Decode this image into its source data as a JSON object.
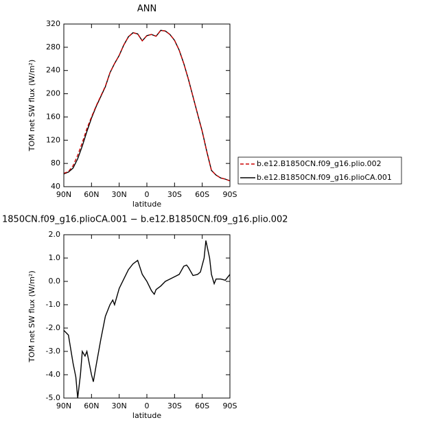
{
  "chart_data": [
    {
      "type": "line",
      "title": "ANN",
      "x": [
        90,
        85,
        80,
        75,
        70,
        65,
        60,
        55,
        50,
        45,
        40,
        35,
        30,
        25,
        20,
        15,
        10,
        5,
        0,
        -5,
        -10,
        -15,
        -20,
        -25,
        -30,
        -35,
        -40,
        -45,
        -50,
        -55,
        -60,
        -65,
        -70,
        -75,
        -80,
        -85,
        -90
      ],
      "series": [
        {
          "name": "b.e12.B1850CN.f09_g16.plio.002",
          "color": "#cc0000",
          "style": "dashed",
          "values": [
            63,
            66,
            76,
            94,
            116,
            140,
            160,
            179,
            196,
            213,
            236,
            252,
            266,
            284,
            298,
            305,
            303,
            291,
            300,
            302,
            299,
            309,
            308,
            302,
            292,
            275,
            252,
            225,
            195,
            165,
            135,
            100,
            68,
            60,
            55,
            53,
            50
          ]
        },
        {
          "name": "b.e12.B1850CN.f09_g16.plioCA.001",
          "color": "#000000",
          "style": "solid",
          "values": [
            62,
            65,
            72,
            88,
            110,
            135,
            158,
            178,
            195,
            212,
            236,
            252,
            266,
            284,
            298,
            305,
            303,
            291,
            300,
            302,
            299,
            309,
            308,
            302,
            292,
            275,
            252,
            225,
            195,
            165,
            135,
            100,
            68,
            60,
            55,
            53,
            50
          ]
        }
      ],
      "xlim": [
        90,
        -90
      ],
      "xticks": [
        {
          "value": 90,
          "label": "90N"
        },
        {
          "value": 60,
          "label": "60N"
        },
        {
          "value": 30,
          "label": "30N"
        },
        0,
        {
          "value": -30,
          "label": "30S"
        },
        {
          "value": -60,
          "label": "60S"
        },
        {
          "value": -90,
          "label": "90S"
        }
      ],
      "ylim": [
        40,
        320
      ],
      "yticks": [
        40,
        80,
        120,
        160,
        200,
        240,
        280,
        320
      ],
      "xlabel": "latitude",
      "ylabel": "TOM net SW flux (W/m²)"
    },
    {
      "type": "line",
      "title": "1850CN.f09_g16.plioCA.001 − b.e12.B1850CN.f09_g16.plio.002",
      "x": [
        90,
        85,
        80,
        77,
        75,
        72,
        70,
        67,
        65,
        60,
        58,
        55,
        50,
        45,
        40,
        37,
        35,
        30,
        25,
        20,
        15,
        10,
        5,
        0,
        -5,
        -8,
        -10,
        -15,
        -20,
        -25,
        -30,
        -35,
        -40,
        -43,
        -45,
        -50,
        -55,
        -58,
        -62,
        -64,
        -68,
        -70,
        -73,
        -75,
        -80,
        -85,
        -90
      ],
      "values": [
        -2.1,
        -2.3,
        -3.5,
        -4.1,
        -5.0,
        -4.0,
        -3.0,
        -3.2,
        -3.0,
        -4.0,
        -4.3,
        -3.6,
        -2.5,
        -1.5,
        -1.0,
        -0.8,
        -1.0,
        -0.3,
        0.1,
        0.5,
        0.75,
        0.9,
        0.3,
        0.0,
        -0.4,
        -0.55,
        -0.35,
        -0.2,
        0.0,
        0.1,
        0.2,
        0.3,
        0.65,
        0.7,
        0.6,
        0.25,
        0.3,
        0.4,
        1.0,
        1.75,
        1.0,
        0.3,
        -0.1,
        0.1,
        0.1,
        0.05,
        0.3
      ],
      "color": "#000000",
      "xlim": [
        90,
        -90
      ],
      "xticks": [
        {
          "value": 90,
          "label": "90N"
        },
        {
          "value": 60,
          "label": "60N"
        },
        {
          "value": 30,
          "label": "30N"
        },
        0,
        {
          "value": -30,
          "label": "30S"
        },
        {
          "value": -60,
          "label": "60S"
        },
        {
          "value": -90,
          "label": "90S"
        }
      ],
      "ylim": [
        -5,
        2
      ],
      "yticks": [
        {
          "value": 2,
          "label": "2.0"
        },
        {
          "value": 1,
          "label": "1.0"
        },
        {
          "value": 0,
          "label": "0.0"
        },
        {
          "value": -1,
          "label": "-1.0"
        },
        {
          "value": -2,
          "label": "-2.0"
        },
        {
          "value": -3,
          "label": "-3.0"
        },
        {
          "value": -4,
          "label": "-4.0"
        },
        {
          "value": -5,
          "label": "-5.0"
        }
      ],
      "xlabel": "latitude",
      "ylabel": "TOM net SW flux (W/m²)"
    }
  ]
}
